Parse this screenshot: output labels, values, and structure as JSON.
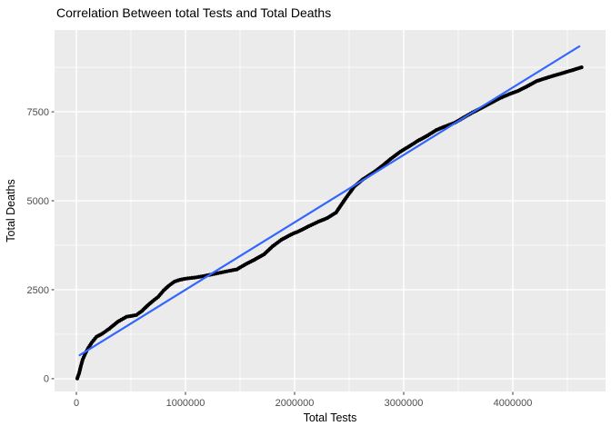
{
  "title": "Correlation Between total Tests and Total Deaths",
  "colors": {
    "figure_bg": "#FFFFFF",
    "panel_bg": "#EBEBEB",
    "grid_major": "#FFFFFF",
    "grid_minor": "#FFFFFF",
    "point": "#000000",
    "trend": "#3366FF",
    "tick_mark": "#333333",
    "tick_label": "#4D4D4D",
    "axis_title": "#000000",
    "title": "#000000"
  },
  "chart_data": {
    "type": "scatter",
    "title": "Correlation Between total Tests and Total Deaths",
    "xlabel": "Total Tests",
    "ylabel": "Total Deaths",
    "legend": "none",
    "grid": true,
    "xlim": [
      -200000,
      4850000
    ],
    "ylim": [
      -360,
      9800
    ],
    "x_ticks": [
      0,
      1000000,
      2000000,
      3000000,
      4000000
    ],
    "x_tick_labels": [
      "0",
      "1000000",
      "2000000",
      "3000000",
      "4000000"
    ],
    "x_minor_step": 500000,
    "y_ticks": [
      0,
      2500,
      5000,
      7500
    ],
    "y_tick_labels": [
      "0",
      "2500",
      "5000",
      "7500"
    ],
    "y_minor_step": 1250,
    "points": [
      [
        8000,
        5
      ],
      [
        25000,
        150
      ],
      [
        42000,
        360
      ],
      [
        58000,
        540
      ],
      [
        83000,
        715
      ],
      [
        110000,
        870
      ],
      [
        145000,
        1030
      ],
      [
        185000,
        1180
      ],
      [
        235000,
        1260
      ],
      [
        300000,
        1400
      ],
      [
        380000,
        1600
      ],
      [
        460000,
        1740
      ],
      [
        550000,
        1790
      ],
      [
        600000,
        1900
      ],
      [
        650000,
        2050
      ],
      [
        700000,
        2180
      ],
      [
        750000,
        2300
      ],
      [
        800000,
        2480
      ],
      [
        850000,
        2620
      ],
      [
        900000,
        2730
      ],
      [
        950000,
        2780
      ],
      [
        1000000,
        2810
      ],
      [
        1080000,
        2840
      ],
      [
        1160000,
        2880
      ],
      [
        1240000,
        2930
      ],
      [
        1320000,
        2980
      ],
      [
        1400000,
        3030
      ],
      [
        1470000,
        3070
      ],
      [
        1550000,
        3215
      ],
      [
        1630000,
        3340
      ],
      [
        1720000,
        3495
      ],
      [
        1800000,
        3725
      ],
      [
        1880000,
        3905
      ],
      [
        1970000,
        4055
      ],
      [
        2050000,
        4160
      ],
      [
        2130000,
        4285
      ],
      [
        2220000,
        4415
      ],
      [
        2300000,
        4515
      ],
      [
        2380000,
        4670
      ],
      [
        2470000,
        5075
      ],
      [
        2550000,
        5410
      ],
      [
        2630000,
        5610
      ],
      [
        2720000,
        5790
      ],
      [
        2800000,
        5970
      ],
      [
        2880000,
        6175
      ],
      [
        2970000,
        6380
      ],
      [
        3050000,
        6530
      ],
      [
        3130000,
        6685
      ],
      [
        3220000,
        6835
      ],
      [
        3300000,
        6990
      ],
      [
        3380000,
        7090
      ],
      [
        3470000,
        7195
      ],
      [
        3550000,
        7340
      ],
      [
        3630000,
        7480
      ],
      [
        3720000,
        7620
      ],
      [
        3800000,
        7750
      ],
      [
        3880000,
        7880
      ],
      [
        3970000,
        8000
      ],
      [
        4050000,
        8090
      ],
      [
        4130000,
        8215
      ],
      [
        4220000,
        8365
      ],
      [
        4300000,
        8445
      ],
      [
        4380000,
        8520
      ],
      [
        4470000,
        8600
      ],
      [
        4550000,
        8675
      ],
      [
        4630000,
        8750
      ]
    ],
    "trend_line": {
      "type": "linear",
      "x": [
        30000,
        4610000
      ],
      "y": [
        660,
        9340
      ]
    }
  }
}
